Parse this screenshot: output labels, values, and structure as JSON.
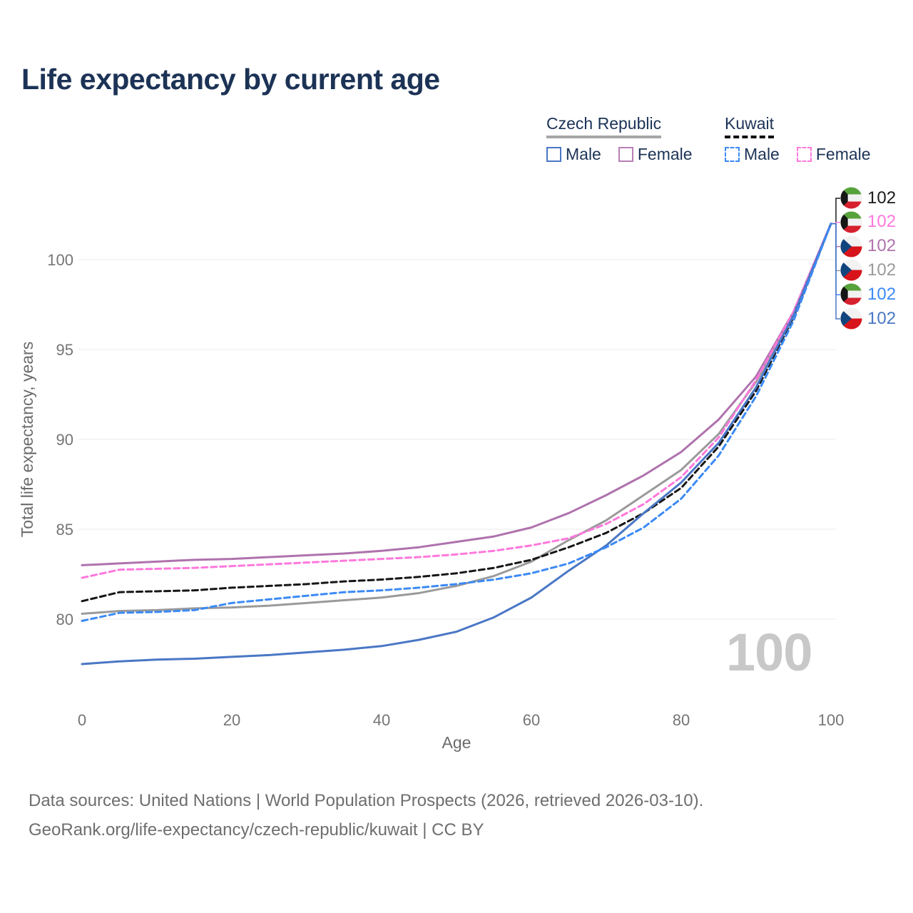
{
  "title": "Life expectancy by current age",
  "watermark": "100",
  "legend": {
    "groups": [
      {
        "name": "Czech Republic",
        "underline_style": "solid",
        "underline_color": "#a6a6a6",
        "items": [
          {
            "label": "Male",
            "color": "#4a77c5",
            "dashed": false
          },
          {
            "label": "Female",
            "color": "#b77fb4",
            "dashed": false
          }
        ]
      },
      {
        "name": "Kuwait",
        "underline_style": "dashed",
        "underline_color": "#111111",
        "items": [
          {
            "label": "Male",
            "color": "#3c8af5",
            "dashed": true
          },
          {
            "label": "Female",
            "color": "#ff78dc",
            "dashed": true
          }
        ]
      }
    ]
  },
  "footer": {
    "line1": "Data sources: United Nations | World Population Prospects (2026, retrieved 2026-03-10).",
    "line2": "GeoRank.org/life-expectancy/czech-republic/kuwait | CC BY"
  },
  "chart_data": {
    "type": "line",
    "title": "Life expectancy by current age",
    "xlabel": "Age",
    "ylabel": "Total life expectancy, years",
    "x": [
      0,
      5,
      10,
      15,
      20,
      25,
      30,
      35,
      40,
      45,
      50,
      55,
      60,
      65,
      70,
      75,
      80,
      85,
      90,
      95,
      100
    ],
    "xticks": [
      0,
      20,
      40,
      60,
      80,
      100
    ],
    "yticks": [
      80,
      85,
      90,
      95,
      100
    ],
    "xlim": [
      0,
      100
    ],
    "ylim": [
      77,
      102.5
    ],
    "grid": "horizontal-only",
    "legend_position": "top-right",
    "gridline_color": "#ebebeb",
    "tick_color": "#757575",
    "axis_title_color": "#6b6b6b",
    "series": [
      {
        "name": "Czech Republic Total",
        "country": "Czech Republic",
        "sex": "Total",
        "color": "#9a9a9a",
        "dash": false,
        "values": [
          80.3,
          80.45,
          80.5,
          80.6,
          80.65,
          80.75,
          80.9,
          81.05,
          81.2,
          81.45,
          81.85,
          82.4,
          83.2,
          84.4,
          85.5,
          86.9,
          88.3,
          90.3,
          93.2,
          97.0,
          102
        ]
      },
      {
        "name": "Czech Republic Female",
        "country": "Czech Republic",
        "sex": "Female",
        "color": "#af72ad",
        "dash": false,
        "values": [
          83.0,
          83.1,
          83.2,
          83.3,
          83.35,
          83.45,
          83.55,
          83.65,
          83.8,
          84.0,
          84.3,
          84.6,
          85.1,
          85.9,
          86.9,
          88.0,
          89.3,
          91.1,
          93.5,
          97.1,
          102
        ]
      },
      {
        "name": "Kuwait Female",
        "country": "Kuwait",
        "sex": "Female",
        "color": "#ff78dc",
        "dash": true,
        "values": [
          82.3,
          82.75,
          82.8,
          82.85,
          82.95,
          83.05,
          83.15,
          83.25,
          83.35,
          83.45,
          83.6,
          83.8,
          84.1,
          84.5,
          85.3,
          86.4,
          87.9,
          90.1,
          93.3,
          97.1,
          102
        ]
      },
      {
        "name": "Kuwait Total",
        "country": "Kuwait",
        "sex": "Total",
        "color": "#161616",
        "dash": true,
        "values": [
          81.0,
          81.5,
          81.55,
          81.6,
          81.75,
          81.85,
          81.95,
          82.1,
          82.2,
          82.35,
          82.55,
          82.85,
          83.3,
          84.0,
          84.8,
          85.9,
          87.3,
          89.6,
          92.7,
          96.8,
          102
        ]
      },
      {
        "name": "Czech Republic Male",
        "country": "Czech Republic",
        "sex": "Male",
        "color": "#4a77c5",
        "dash": false,
        "values": [
          77.5,
          77.65,
          77.75,
          77.8,
          77.9,
          78.0,
          78.15,
          78.3,
          78.5,
          78.85,
          79.3,
          80.1,
          81.2,
          82.7,
          84.1,
          85.9,
          87.6,
          89.8,
          92.9,
          96.9,
          102
        ]
      },
      {
        "name": "Kuwait Male",
        "country": "Kuwait",
        "sex": "Male",
        "color": "#3c8af5",
        "dash": true,
        "values": [
          79.9,
          80.35,
          80.4,
          80.5,
          80.9,
          81.1,
          81.3,
          81.5,
          81.6,
          81.75,
          81.95,
          82.2,
          82.55,
          83.1,
          84.0,
          85.1,
          86.7,
          89.1,
          92.4,
          96.6,
          102
        ]
      }
    ],
    "end_labels": [
      {
        "flag": "kuwait",
        "series": "Kuwait Total",
        "value": "102",
        "color": "#1a1a1a"
      },
      {
        "flag": "kuwait",
        "series": "Kuwait Female",
        "value": "102",
        "color": "#ff78dc"
      },
      {
        "flag": "czech-republic",
        "series": "Czech Republic Female",
        "value": "102",
        "color": "#af72ad"
      },
      {
        "flag": "czech-republic",
        "series": "Czech Republic Total",
        "value": "102",
        "color": "#9a9a9a"
      },
      {
        "flag": "kuwait",
        "series": "Kuwait Male",
        "value": "102",
        "color": "#3c8af5"
      },
      {
        "flag": "czech-republic",
        "series": "Czech Republic Male",
        "value": "102",
        "color": "#4a77c5"
      }
    ]
  }
}
